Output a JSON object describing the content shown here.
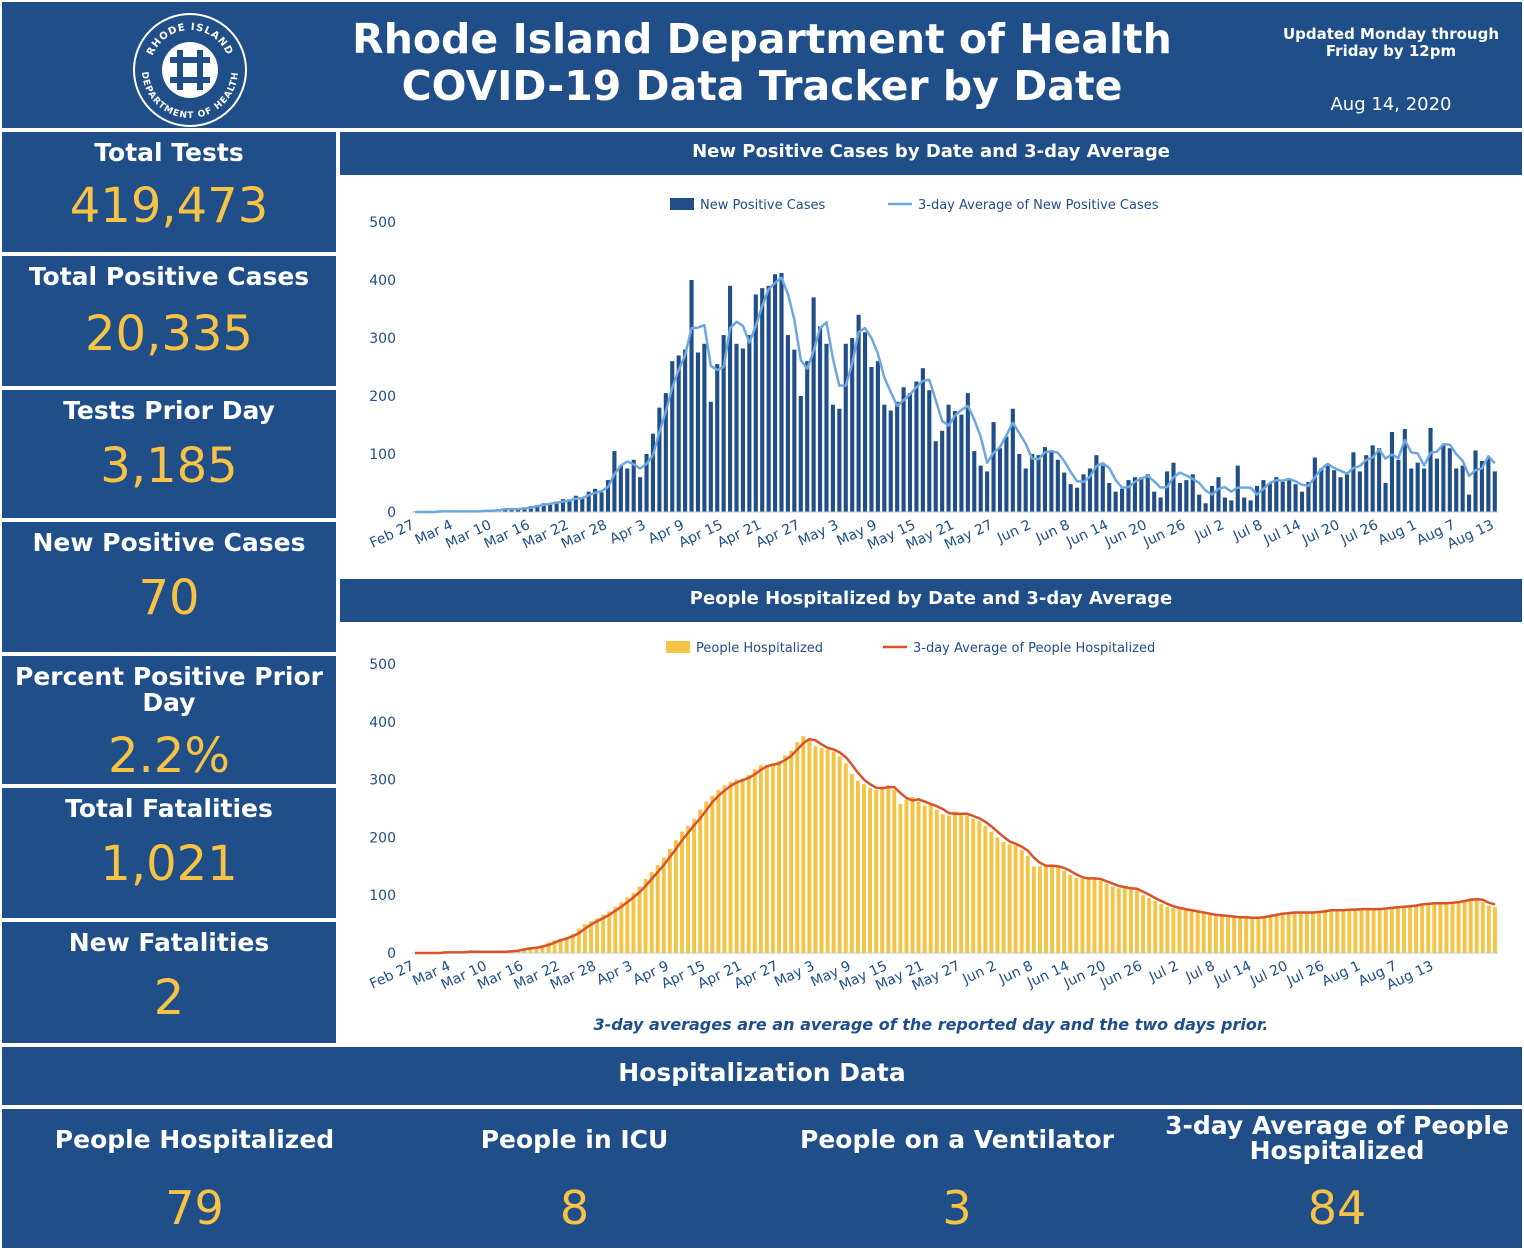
{
  "header": {
    "title_line1": "Rhode Island Department of Health",
    "title_line2": "COVID-19 Data Tracker by Date",
    "update_note": "Updated Monday through Friday by 12pm",
    "date": "Aug 14, 2020",
    "logo": {
      "icon": "ri-health-seal-icon",
      "top_text": "RHODE ISLAND",
      "bottom_text": "DEPARTMENT OF HEALTH"
    }
  },
  "summary_cards": [
    {
      "label": "Total Tests",
      "value": "419,473"
    },
    {
      "label": "Total Positive Cases",
      "value": "20,335"
    },
    {
      "label": "Tests Prior Day",
      "value": "3,185"
    },
    {
      "label": "New Positive Cases",
      "value": "70"
    },
    {
      "label": "Percent Positive Prior Day",
      "value": "2.2%"
    },
    {
      "label": "Total Fatalities",
      "value": "1,021"
    },
    {
      "label": "New Fatalities",
      "value": "2"
    }
  ],
  "colors": {
    "panel": "#1f4e89",
    "accent_value": "#f6c344",
    "cases_bar": "#1f4e89",
    "cases_avg": "#6ca7e0",
    "hosp_bar": "#f6c344",
    "hosp_avg": "#d9522a",
    "axis_text": "#1f4e89"
  },
  "footnote": "3-day averages are an average of the reported day and the two days prior.",
  "hospitalization": {
    "title": "Hospitalization Data",
    "stats": [
      {
        "label": "People Hospitalized",
        "value": "79"
      },
      {
        "label": "People in ICU",
        "value": "8"
      },
      {
        "label": "People on a Ventilator",
        "value": "3"
      },
      {
        "label": "3-day Average of People Hospitalized",
        "value": "84"
      }
    ]
  },
  "chart_data": [
    {
      "type": "bar",
      "title": "New Positive Cases by Date and 3-day Average",
      "xlabel": "",
      "ylabel": "",
      "ylim": [
        0,
        500
      ],
      "yticks": [
        0,
        100,
        200,
        300,
        400,
        500
      ],
      "grid": false,
      "legend": "top-center",
      "start_date": "2020-02-27",
      "x_tick_labels": [
        "Feb 27",
        "Mar 4",
        "Mar 10",
        "Mar 16",
        "Mar 22",
        "Mar 28",
        "Apr 3",
        "Apr 9",
        "Apr 15",
        "Apr 21",
        "Apr 27",
        "May 3",
        "May 9",
        "May 15",
        "May 21",
        "May 27",
        "Jun 2",
        "Jun 8",
        "Jun 14",
        "Jun 20",
        "Jun 26",
        "Jul 2",
        "Jul 8",
        "Jul 14",
        "Jul 20",
        "Jul 26",
        "Aug 1",
        "Aug 7",
        "Aug 13"
      ],
      "series": [
        {
          "name": "New Positive Cases",
          "kind": "bar",
          "values": [
            1,
            0,
            0,
            1,
            2,
            1,
            0,
            1,
            1,
            2,
            1,
            2,
            3,
            5,
            6,
            5,
            4,
            8,
            10,
            12,
            15,
            14,
            18,
            22,
            20,
            28,
            25,
            35,
            40,
            34,
            55,
            105,
            80,
            75,
            90,
            60,
            100,
            135,
            180,
            205,
            260,
            270,
            280,
            400,
            275,
            290,
            190,
            255,
            305,
            390,
            290,
            282,
            305,
            375,
            386,
            390,
            410,
            412,
            305,
            280,
            200,
            260,
            370,
            320,
            290,
            185,
            178,
            290,
            300,
            340,
            310,
            250,
            260,
            185,
            175,
            190,
            215,
            205,
            225,
            248,
            210,
            122,
            140,
            185,
            174,
            168,
            205,
            105,
            80,
            70,
            155,
            110,
            130,
            178,
            100,
            75,
            100,
            98,
            112,
            105,
            90,
            68,
            48,
            42,
            65,
            75,
            98,
            80,
            50,
            35,
            40,
            55,
            60,
            60,
            65,
            35,
            25,
            70,
            85,
            50,
            55,
            65,
            30,
            15,
            45,
            60,
            25,
            20,
            80,
            25,
            20,
            45,
            55,
            50,
            60,
            52,
            58,
            48,
            35,
            52,
            94,
            75,
            80,
            72,
            60,
            65,
            103,
            70,
            98,
            115,
            110,
            50,
            138,
            90,
            143,
            75,
            85,
            75,
            145,
            92,
            115,
            110,
            75,
            80,
            30,
            106,
            88,
            94,
            70
          ]
        },
        {
          "name": "3-day Average of New Positive Cases",
          "kind": "line",
          "values": [
            0,
            0,
            0,
            0,
            1,
            1,
            1,
            1,
            1,
            1,
            1,
            2,
            2,
            3,
            5,
            5,
            5,
            6,
            7,
            10,
            12,
            14,
            16,
            18,
            20,
            23,
            24,
            29,
            33,
            36,
            43,
            65,
            80,
            87,
            82,
            75,
            83,
            98,
            138,
            173,
            215,
            245,
            270,
            317,
            318,
            322,
            252,
            245,
            250,
            317,
            328,
            321,
            292,
            321,
            355,
            384,
            395,
            404,
            376,
            332,
            262,
            247,
            277,
            317,
            327,
            265,
            218,
            218,
            256,
            310,
            317,
            300,
            273,
            232,
            207,
            183,
            193,
            203,
            215,
            226,
            228,
            193,
            157,
            149,
            166,
            176,
            183,
            159,
            130,
            85,
            102,
            112,
            132,
            154,
            136,
            118,
            92,
            91,
            103,
            105,
            102,
            88,
            69,
            53,
            52,
            61,
            79,
            84,
            76,
            55,
            42,
            43,
            52,
            58,
            62,
            53,
            42,
            43,
            60,
            68,
            63,
            57,
            50,
            37,
            30,
            40,
            43,
            35,
            42,
            42,
            42,
            30,
            40,
            50,
            55,
            54,
            57,
            53,
            47,
            45,
            60,
            74,
            83,
            76,
            71,
            66,
            76,
            79,
            90,
            94,
            108,
            92,
            99,
            93,
            124,
            103,
            101,
            80,
            102,
            104,
            117,
            116,
            100,
            88,
            62,
            72,
            75,
            96,
            84
          ]
        }
      ]
    },
    {
      "type": "bar",
      "title": "People Hospitalized by Date and 3-day Average",
      "xlabel": "",
      "ylabel": "",
      "ylim": [
        0,
        500
      ],
      "yticks": [
        0,
        100,
        200,
        300,
        400,
        500
      ],
      "grid": false,
      "legend": "top-center",
      "start_date": "2020-02-27",
      "x_tick_labels": [
        "Feb 27",
        "Mar 4",
        "Mar 10",
        "Mar 16",
        "Mar 22",
        "Mar 28",
        "Apr 3",
        "Apr 9",
        "Apr 15",
        "Apr 21",
        "Apr 27",
        "May 3",
        "May 9",
        "May 15",
        "May 21",
        "May 27",
        "Jun 2",
        "Jun 8",
        "Jun 14",
        "Jun 20",
        "Jun 26",
        "Jul 2",
        "Jul 8",
        "Jul 14",
        "Jul 20",
        "Jul 26",
        "Aug 1",
        "Aug 7",
        "Aug 13"
      ],
      "series": [
        {
          "name": "People Hospitalized",
          "kind": "bar",
          "values": [
            0,
            0,
            0,
            0,
            0,
            1,
            1,
            1,
            2,
            2,
            2,
            2,
            2,
            2,
            2,
            3,
            4,
            6,
            8,
            9,
            10,
            14,
            18,
            22,
            25,
            28,
            33,
            42,
            50,
            55,
            60,
            66,
            72,
            80,
            88,
            96,
            104,
            115,
            128,
            140,
            152,
            165,
            180,
            195,
            210,
            220,
            232,
            248,
            262,
            272,
            282,
            290,
            296,
            300,
            302,
            308,
            318,
            325,
            325,
            328,
            332,
            342,
            350,
            365,
            375,
            370,
            358,
            355,
            352,
            348,
            340,
            328,
            310,
            298,
            292,
            285,
            282,
            288,
            290,
            282,
            258,
            265,
            270,
            262,
            255,
            258,
            248,
            240,
            238,
            245,
            240,
            238,
            232,
            228,
            220,
            210,
            200,
            192,
            188,
            186,
            178,
            168,
            150,
            150,
            152,
            150,
            148,
            142,
            135,
            130,
            128,
            130,
            128,
            125,
            120,
            115,
            112,
            115,
            110,
            108,
            100,
            95,
            90,
            85,
            80,
            78,
            76,
            75,
            72,
            70,
            68,
            66,
            65,
            64,
            63,
            62,
            62,
            61,
            60,
            62,
            64,
            66,
            68,
            70,
            70,
            70,
            70,
            70,
            70,
            72,
            75,
            74,
            74,
            75,
            75,
            76,
            76,
            76,
            76,
            77,
            78,
            80,
            80,
            80,
            82,
            84,
            85,
            86,
            86,
            87,
            86,
            88,
            90,
            92,
            95,
            92,
            88,
            82,
            79
          ]
        },
        {
          "name": "3-day Average of People Hospitalized",
          "kind": "line",
          "values": [
            0,
            0,
            0,
            0,
            0,
            1,
            1,
            1,
            1,
            2,
            2,
            2,
            2,
            2,
            2,
            2,
            3,
            4,
            6,
            8,
            9,
            11,
            14,
            18,
            22,
            25,
            29,
            34,
            42,
            49,
            55,
            60,
            66,
            73,
            80,
            88,
            96,
            105,
            116,
            128,
            140,
            152,
            166,
            180,
            195,
            208,
            221,
            233,
            247,
            261,
            272,
            281,
            289,
            295,
            299,
            303,
            309,
            317,
            323,
            326,
            328,
            334,
            341,
            352,
            363,
            370,
            368,
            361,
            355,
            352,
            347,
            339,
            326,
            312,
            300,
            292,
            286,
            285,
            287,
            287,
            277,
            268,
            264,
            266,
            262,
            258,
            254,
            249,
            242,
            241,
            241,
            241,
            237,
            233,
            227,
            219,
            210,
            201,
            193,
            189,
            184,
            177,
            165,
            156,
            151,
            151,
            150,
            147,
            142,
            136,
            131,
            129,
            129,
            128,
            124,
            120,
            116,
            114,
            112,
            111,
            106,
            101,
            95,
            90,
            85,
            81,
            78,
            76,
            74,
            72,
            70,
            68,
            66,
            65,
            64,
            63,
            62,
            62,
            61,
            61,
            62,
            64,
            66,
            68,
            69,
            70,
            70,
            70,
            70,
            71,
            72,
            74,
            74,
            74,
            75,
            75,
            76,
            76,
            76,
            76,
            77,
            78,
            79,
            80,
            81,
            82,
            84,
            85,
            86,
            86,
            86,
            87,
            88,
            90,
            92,
            93,
            92,
            87,
            84
          ]
        }
      ]
    }
  ]
}
